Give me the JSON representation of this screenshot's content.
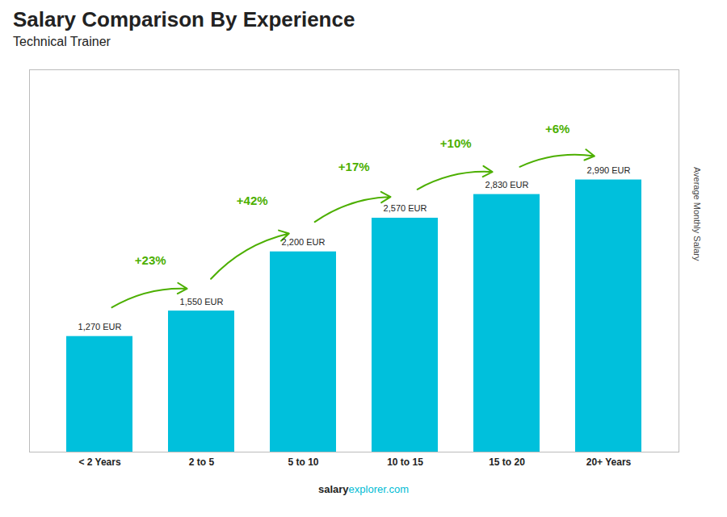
{
  "chart_data": {
    "type": "bar",
    "title": "Salary Comparison By Experience",
    "subtitle": "Technical Trainer",
    "categories": [
      "< 2 Years",
      "2 to 5",
      "5 to 10",
      "10 to 15",
      "15 to 20",
      "20+ Years"
    ],
    "values": [
      1270,
      1550,
      2200,
      2570,
      2830,
      2990
    ],
    "value_labels": [
      "1,270 EUR",
      "1,550 EUR",
      "2,200 EUR",
      "2,570 EUR",
      "2,830 EUR",
      "2,990 EUR"
    ],
    "data_labels": true,
    "color": "#00c0dc",
    "ylim": [
      0,
      4200
    ],
    "ylabel": "Average Monthly Salary",
    "tick_labels": "x",
    "grid": false,
    "annotations": [
      null,
      "+23%",
      "+42%",
      "+17%",
      "+10%",
      "+6%"
    ],
    "footer": [
      "salary",
      "explorer.com"
    ]
  }
}
